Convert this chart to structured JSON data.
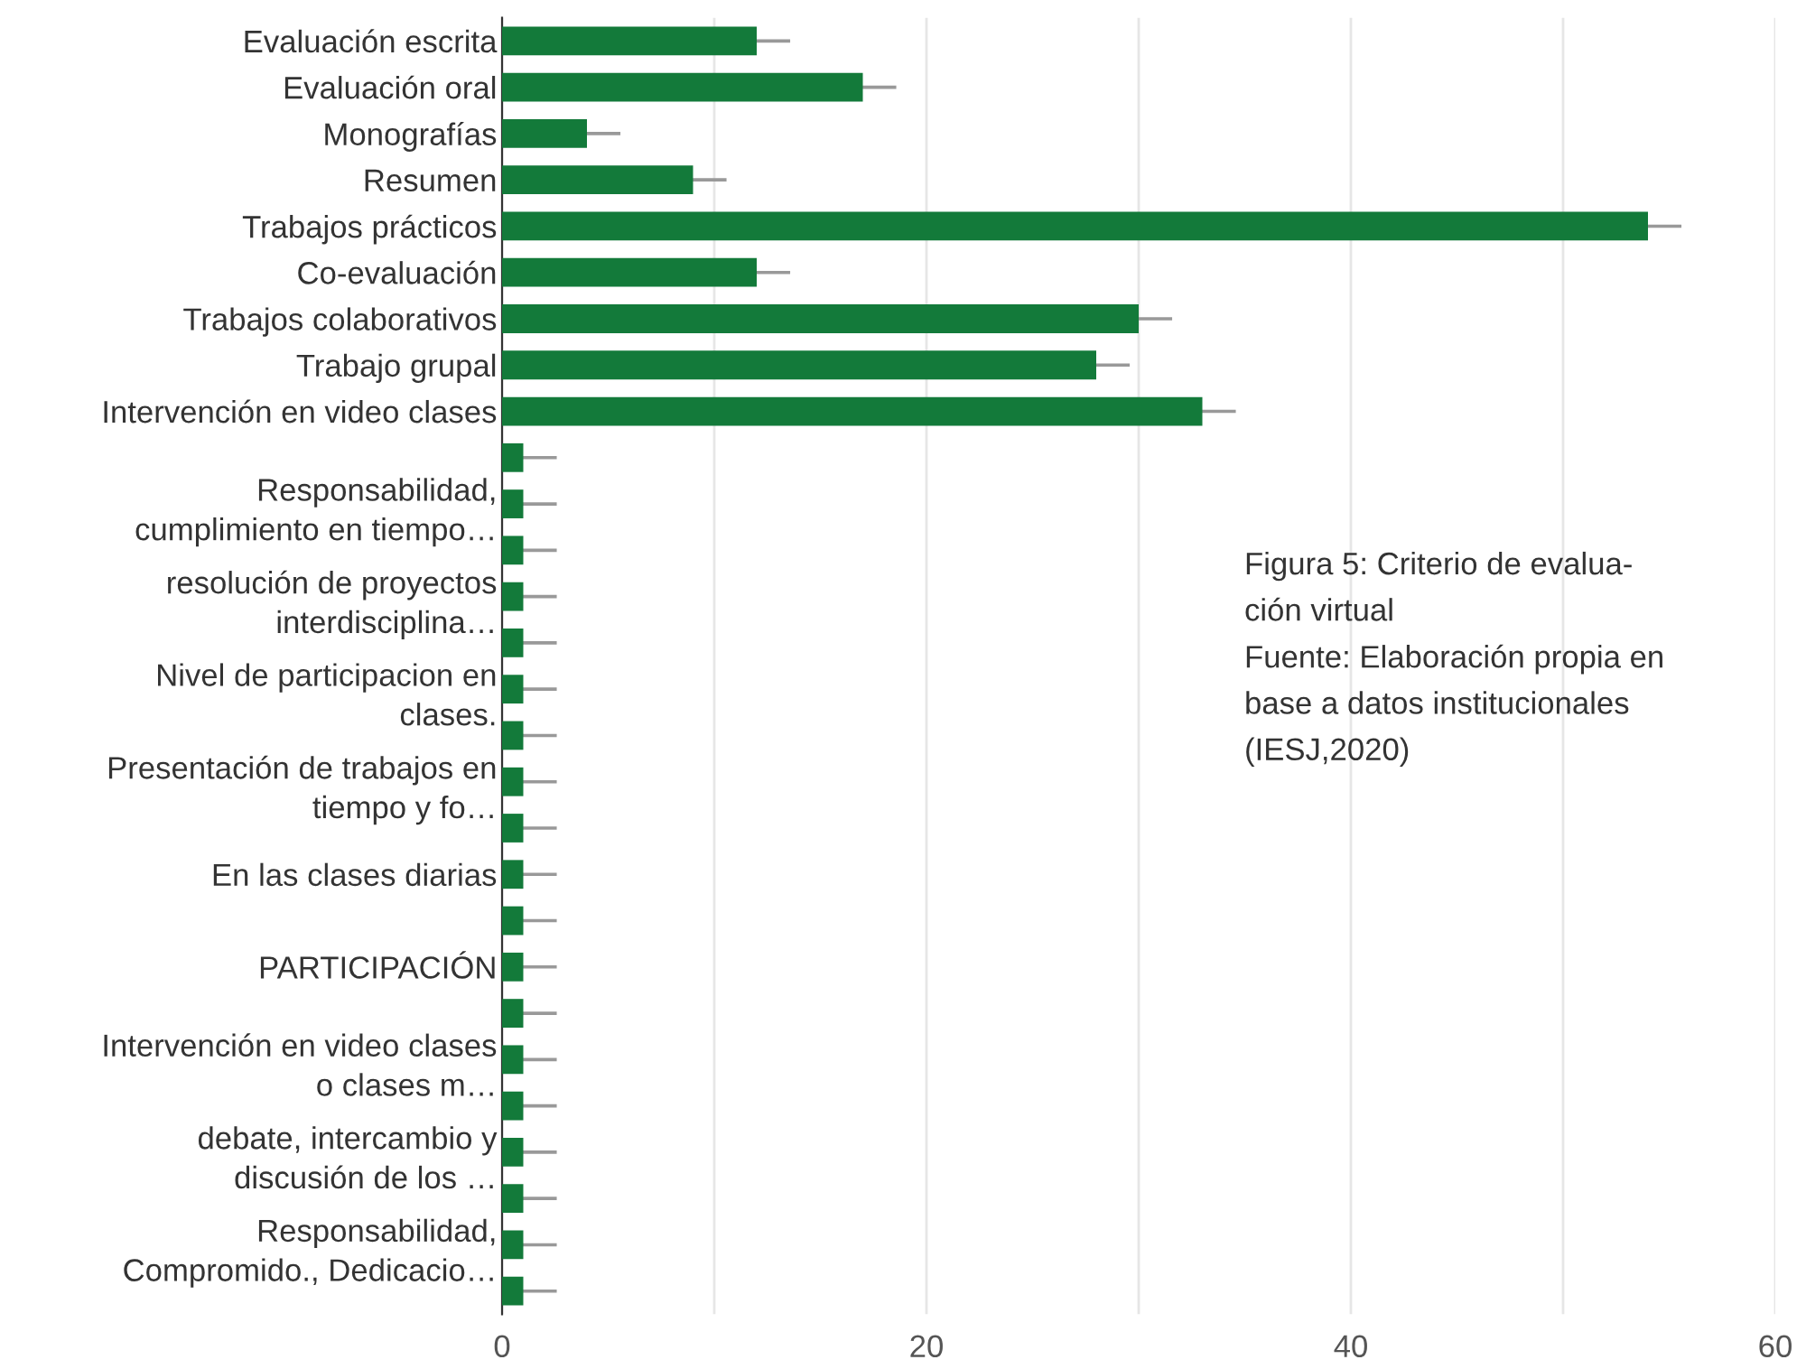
{
  "chart_data": {
    "type": "bar",
    "orientation": "horizontal",
    "categories": [
      "Evaluación escrita",
      "Evaluación oral",
      "Monografías",
      "Resumen",
      "Trabajos prácticos",
      "Co-evaluación",
      "Trabajos colaborativos",
      "Trabajo grupal",
      "Intervención en video clases",
      null,
      "Responsabilidad,\ncumplimiento en tiempo…",
      null,
      "resolución de proyectos\ninterdisciplina…",
      null,
      "Nivel de participacion en\nclases.",
      null,
      "Presentación de trabajos en\ntiempo y fo…",
      null,
      "En las clases diarias",
      null,
      "PARTICIPACIÓN",
      null,
      "Intervención en video clases\no clases m…",
      null,
      "debate, intercambio y\ndiscusión de los …",
      null,
      "Responsabilidad,\nCompromido., Dedicacio…",
      null
    ],
    "values": [
      12,
      17,
      4,
      9,
      54,
      12,
      30,
      28,
      33,
      1,
      1,
      1,
      1,
      1,
      1,
      1,
      1,
      1,
      1,
      1,
      1,
      1,
      1,
      1,
      1,
      1,
      1,
      1
    ],
    "errors": [
      [
        12,
        13.5
      ],
      [
        17,
        18.5
      ],
      [
        4,
        5.5
      ],
      [
        9,
        10.5
      ],
      [
        54,
        55.5
      ],
      [
        12,
        13.5
      ],
      [
        30,
        31.5
      ],
      [
        28,
        29.5
      ],
      [
        33,
        34.5
      ],
      [
        1,
        2.5
      ],
      [
        1,
        2.5
      ],
      [
        1,
        2.5
      ],
      [
        1,
        2.5
      ],
      [
        1,
        2.5
      ],
      [
        1,
        2.5
      ],
      [
        1,
        2.5
      ],
      [
        1,
        2.5
      ],
      [
        1,
        2.5
      ],
      [
        1,
        2.5
      ],
      [
        1,
        2.5
      ],
      [
        1,
        2.5
      ],
      [
        1,
        2.5
      ],
      [
        1,
        2.5
      ],
      [
        1,
        2.5
      ],
      [
        1,
        2.5
      ],
      [
        1,
        2.5
      ],
      [
        1,
        2.5
      ],
      [
        1,
        2.5
      ]
    ],
    "color": "#137a3a",
    "xlim": [
      0,
      60
    ],
    "xticks": [
      0,
      {
        "value": 10,
        "label": null
      },
      20,
      {
        "value": 30,
        "label": null
      },
      40,
      {
        "value": 50,
        "label": null
      },
      60
    ],
    "grid": "x",
    "annotations": [
      "Figura 5: Criterio de evalua-\nción virtual\nFuente: Elaboración propia en\nbase a datos institucionales\n(IESJ,2020)"
    ]
  }
}
